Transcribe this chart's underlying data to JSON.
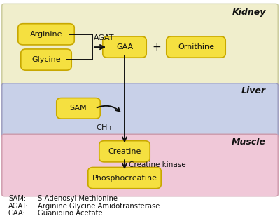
{
  "kidney_color": "#f0eecc",
  "liver_color": "#c8d0e8",
  "muscle_color": "#f0c8d8",
  "box_color": "#f5e040",
  "box_edge_color": "#c8a800",
  "kidney_label": "Kidney",
  "liver_label": "Liver",
  "muscle_label": "Muscle",
  "bg_color": "#ffffff",
  "arrow_color": "#111111",
  "text_color": "#111111",
  "band_edge_kidney": "#c8c898",
  "band_edge_liver": "#9999bb",
  "band_edge_muscle": "#cc99aa",
  "legend_lines": [
    [
      "SAM:",
      "  S-Adenosyl Methionine"
    ],
    [
      "AGAT:",
      "  Arginine Glycine Amidotransferase"
    ],
    [
      "GAA:",
      "  Guanidino Acetate"
    ]
  ]
}
